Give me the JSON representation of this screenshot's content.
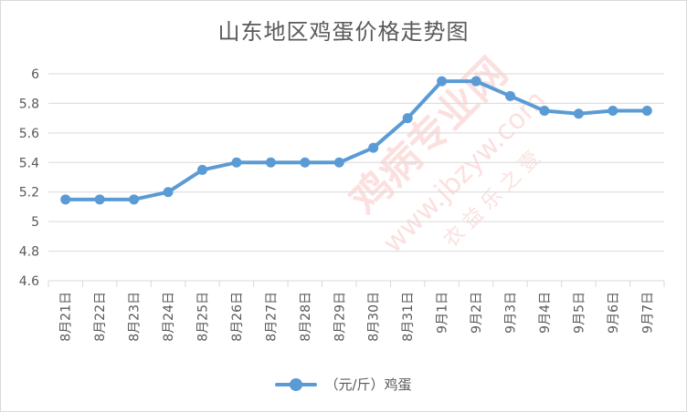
{
  "colors": {
    "series": "#5b9bd5",
    "grid": "#d9d9d9",
    "text": "#595959",
    "watermark": "#e8433c"
  },
  "watermark": {
    "text_main": "鸡病专业网",
    "text_url": "www.jbzyw.com",
    "text_sub": "衣 益 乐 之 壹"
  },
  "chart_data": {
    "type": "line",
    "title": "山东地区鸡蛋价格走势图",
    "xlabel": "",
    "ylabel": "",
    "categories": [
      "8月21日",
      "8月22日",
      "8月23日",
      "8月24日",
      "8月25日",
      "8月26日",
      "8月27日",
      "8月28日",
      "8月29日",
      "8月30日",
      "8月31日",
      "9月1日",
      "9月2日",
      "9月3日",
      "9月4日",
      "9月5日",
      "9月6日",
      "9月7日"
    ],
    "series": [
      {
        "name": "（元/斤）鸡蛋",
        "values": [
          5.15,
          5.15,
          5.15,
          5.2,
          5.35,
          5.4,
          5.4,
          5.4,
          5.4,
          5.5,
          5.7,
          5.95,
          5.95,
          5.85,
          5.75,
          5.73,
          5.75,
          5.75
        ]
      }
    ],
    "ylim": [
      4.6,
      6
    ],
    "yticks": [
      "4.6",
      "4.8",
      "5",
      "5.2",
      "5.4",
      "5.6",
      "5.8",
      "6"
    ],
    "grid": true,
    "legend": "bottom"
  }
}
